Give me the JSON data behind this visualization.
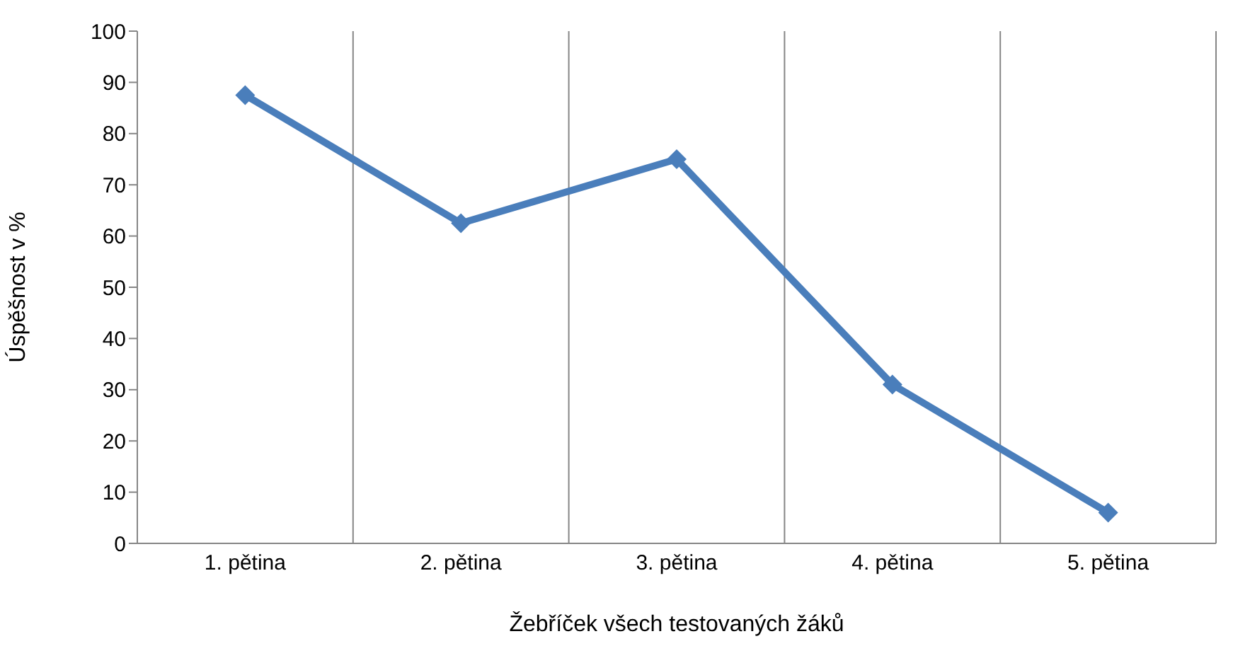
{
  "chart_data": {
    "type": "line",
    "xlabel": "Žebříček všech testovaných žáků",
    "ylabel": "Úspěšnost v %",
    "categories": [
      "1. pětina",
      "2. pětina",
      "3. pětina",
      "4. pětina",
      "5. pětina"
    ],
    "series": [
      {
        "color": "#4a7ebb",
        "values": [
          87.5,
          62.5,
          75,
          31,
          6
        ]
      }
    ],
    "ylim": [
      0,
      100
    ],
    "yticks": [
      0,
      10,
      20,
      30,
      40,
      50,
      60,
      70,
      80,
      90,
      100
    ],
    "grid": "x",
    "marker": "diamond",
    "line_style": "solid",
    "legend": false
  }
}
